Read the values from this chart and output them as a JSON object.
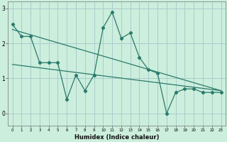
{
  "xlabel": "Humidex (Indice chaleur)",
  "bg_color": "#cceedd",
  "grid_color": "#aacccc",
  "line_color": "#2a7a6a",
  "x_data": [
    0,
    1,
    2,
    3,
    4,
    5,
    6,
    7,
    8,
    9,
    10,
    11,
    12,
    13,
    14,
    15,
    16,
    17,
    18,
    19,
    20,
    21,
    22,
    23
  ],
  "y_data": [
    2.55,
    2.2,
    2.2,
    1.45,
    1.45,
    1.45,
    0.4,
    1.1,
    0.65,
    1.1,
    2.45,
    2.9,
    2.15,
    2.3,
    1.6,
    1.25,
    1.15,
    0.0,
    0.6,
    0.7,
    0.7,
    0.6,
    0.6,
    0.6
  ],
  "trend1_start": 2.4,
  "trend1_end": 0.65,
  "trend2_start": 1.4,
  "trend2_end": 0.65,
  "ylim": [
    -0.35,
    3.2
  ],
  "xlim": [
    -0.5,
    23.5
  ],
  "yticks": [
    0,
    1,
    2,
    3
  ]
}
